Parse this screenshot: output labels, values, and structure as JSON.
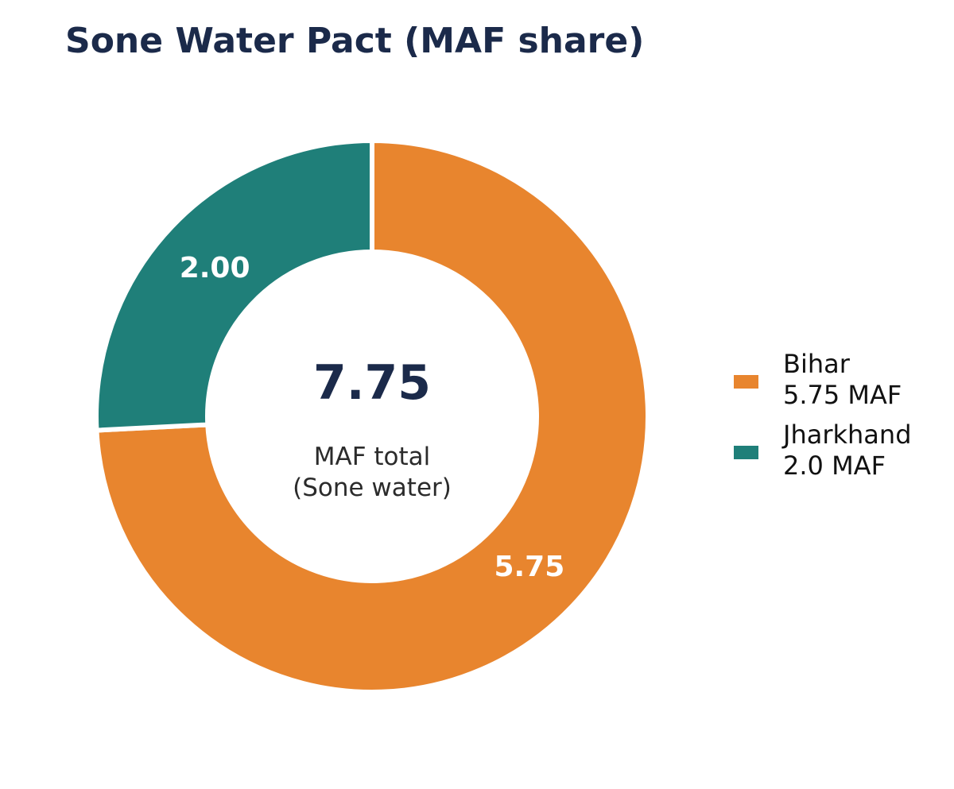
{
  "chart_data": {
    "type": "pie",
    "style": "donut",
    "title": "Sone Water Pact (MAF share)",
    "slices": [
      {
        "name": "Bihar",
        "value": 5.75,
        "label": "5.75",
        "legend_detail": "5.75 MAF",
        "color": "#E8852E"
      },
      {
        "name": "Jharkhand",
        "value": 2.0,
        "label": "2.00",
        "legend_detail": "2.0 MAF",
        "color": "#1F7F79"
      }
    ],
    "center": {
      "value": "7.75",
      "caption_line1": "MAF total",
      "caption_line2": "(Sone water)"
    },
    "legend_position": "right",
    "colors": {
      "title": "#1B2A4A",
      "center_value": "#1B2A4A",
      "separator": "#ffffff"
    }
  }
}
